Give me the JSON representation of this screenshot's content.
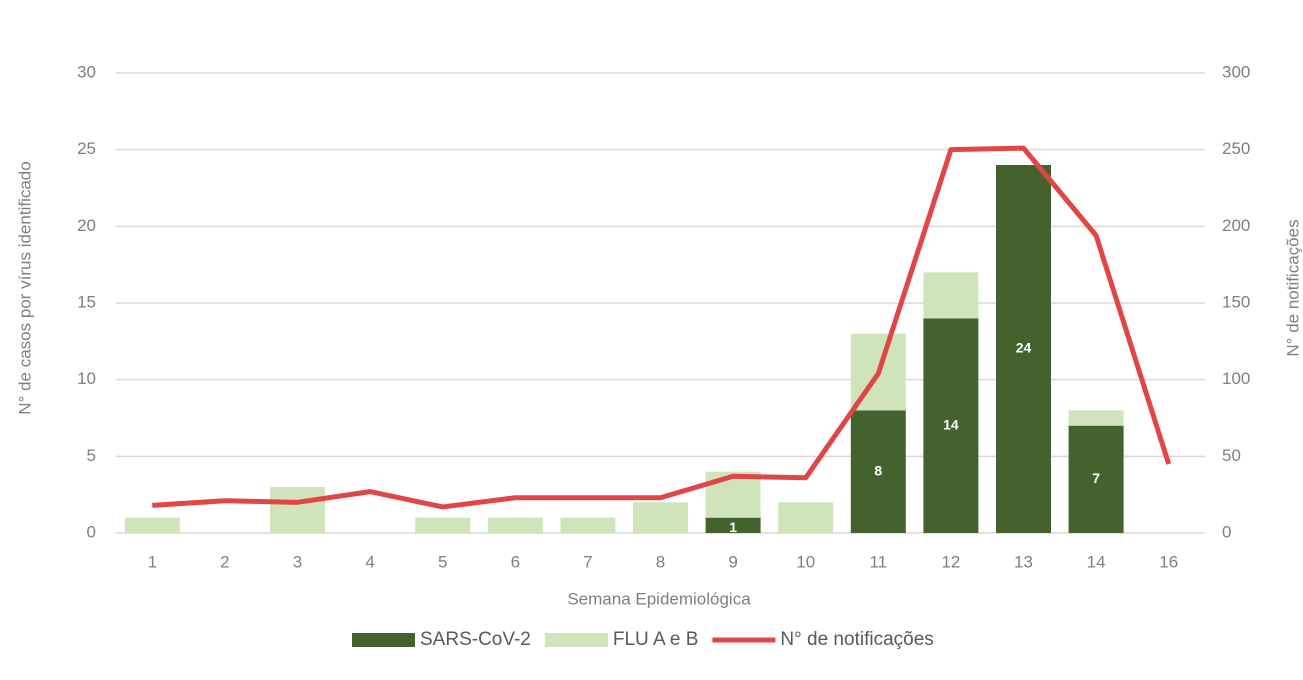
{
  "chart_data": {
    "type": "bar",
    "x_label": "Semana Epidemiológica",
    "y_label": "N° de casos por vírus identificado",
    "y2_label": "N° de notificações",
    "categories": [
      "1",
      "2",
      "3",
      "4",
      "5",
      "6",
      "7",
      "8",
      "9",
      "10",
      "11",
      "12",
      "13",
      "14",
      "16"
    ],
    "series": [
      {
        "name": "SARS-CoV-2",
        "type": "bar",
        "color": "#44622e",
        "values": [
          0,
          0,
          0,
          0,
          0,
          0,
          0,
          0,
          1,
          0,
          8,
          14,
          24,
          7,
          0
        ]
      },
      {
        "name": "FLU A e B",
        "type": "bar",
        "color": "#d0e4bc",
        "values": [
          1,
          0,
          3,
          0,
          1,
          1,
          1,
          2,
          3,
          2,
          5,
          3,
          0,
          1,
          0
        ]
      },
      {
        "name": "N° de notificações",
        "type": "line",
        "axis": "y2",
        "color": "#e04646",
        "values": [
          18,
          21,
          20,
          27,
          17,
          23,
          23,
          23,
          37,
          36,
          104,
          250,
          251,
          194,
          45
        ]
      }
    ],
    "stacked": true,
    "ylim": [
      0,
      30
    ],
    "yticks": [
      0,
      5,
      10,
      15,
      20,
      25,
      30
    ],
    "y2lim": [
      0,
      300
    ],
    "y2ticks": [
      0,
      50,
      100,
      150,
      200,
      250,
      300
    ],
    "grid": true,
    "legend": "bottom"
  }
}
